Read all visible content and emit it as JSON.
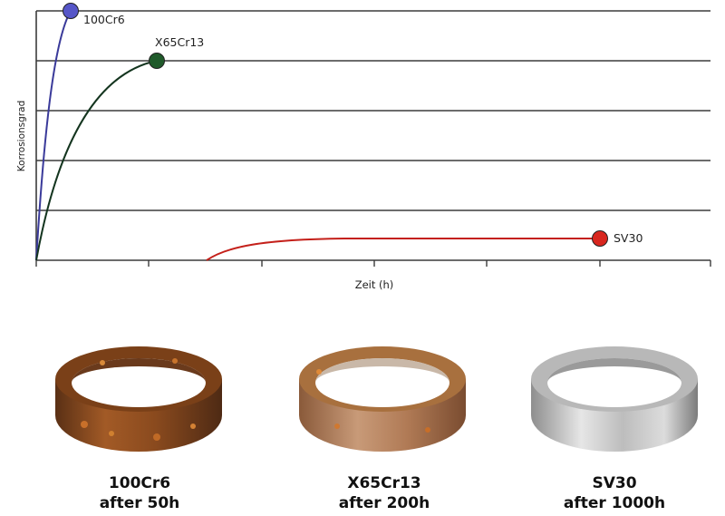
{
  "chart_data": {
    "type": "line",
    "xlabel": "Zeit (h)",
    "ylabel": "Korrosionsgrad",
    "grid": "horizontal",
    "series": [
      {
        "name": "100Cr6",
        "color": "#3a3a9a",
        "marker": "#5656c8",
        "endpoint": [
          0.3,
          4.85
        ]
      },
      {
        "name": "X65Cr13",
        "color": "#14351f",
        "marker": "#1f5a2a",
        "endpoint": [
          1.07,
          3.95
        ]
      },
      {
        "name": "SV30",
        "color": "#c4201a",
        "marker": "#d8261e",
        "endpoint": [
          4.98,
          0.43
        ]
      }
    ]
  },
  "samples": [
    {
      "name": "100Cr6",
      "time": "after 50h"
    },
    {
      "name": "X65Cr13",
      "time": "after 200h"
    },
    {
      "name": "SV30",
      "time": "after 1000h"
    }
  ]
}
